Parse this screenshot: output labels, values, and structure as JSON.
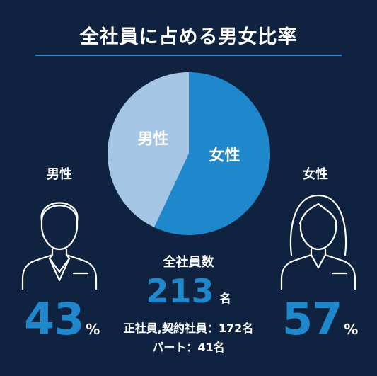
{
  "title": "全社員に占める男女比率",
  "colors": {
    "background": "#0f2240",
    "accent": "#1f87cc",
    "male_slice": "#a4c6e4",
    "female_slice": "#1f87cc"
  },
  "chart_data": {
    "type": "pie",
    "slices": [
      {
        "label": "男性",
        "value": 43,
        "color": "#a4c6e4"
      },
      {
        "label": "女性",
        "value": 57,
        "color": "#1f87cc"
      }
    ]
  },
  "male": {
    "label": "男性",
    "percent": "43",
    "unit": "%",
    "icon": "male-person-icon"
  },
  "female": {
    "label": "女性",
    "percent": "57",
    "unit": "%",
    "icon": "female-person-icon"
  },
  "total": {
    "label": "全社員数",
    "value": "213",
    "unit": "名",
    "regular": "正社員,契約社員：172名",
    "part_time": "パート：41名"
  }
}
